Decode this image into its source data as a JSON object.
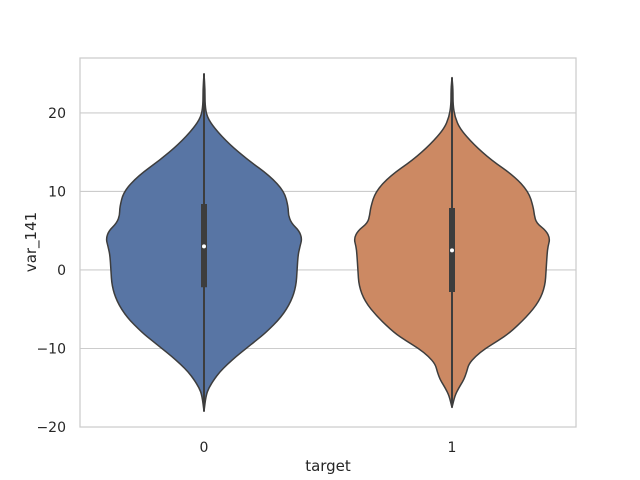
{
  "chart_data": {
    "type": "violin",
    "xlabel": "target",
    "ylabel": "var_141",
    "ylim": [
      -20,
      27
    ],
    "yticks": [
      20,
      10,
      0,
      -10,
      -20
    ],
    "ytick_labels": [
      "20",
      "10",
      "0",
      "−10",
      "−20"
    ],
    "categories": [
      "0",
      "1"
    ],
    "grid": "horizontal",
    "violins": [
      {
        "category": "0",
        "color": "#5875a4",
        "min": -18.0,
        "max": 25.0,
        "median": 3.0,
        "q1": -2.2,
        "q3": 8.4,
        "whisker_low": -15.0,
        "whisker_high": 19.0,
        "density_profile": [
          [
            -18.0,
            0.0
          ],
          [
            -16.0,
            0.02
          ],
          [
            -15.0,
            0.05
          ],
          [
            -14.0,
            0.1
          ],
          [
            -13.0,
            0.16
          ],
          [
            -12.0,
            0.24
          ],
          [
            -11.0,
            0.33
          ],
          [
            -10.0,
            0.43
          ],
          [
            -9.0,
            0.53
          ],
          [
            -8.0,
            0.63
          ],
          [
            -6.0,
            0.79
          ],
          [
            -4.0,
            0.89
          ],
          [
            -2.0,
            0.94
          ],
          [
            0.0,
            0.95
          ],
          [
            2.0,
            0.96
          ],
          [
            3.0,
            0.98
          ],
          [
            4.0,
            1.0
          ],
          [
            5.0,
            0.97
          ],
          [
            6.0,
            0.89
          ],
          [
            7.0,
            0.86
          ],
          [
            8.0,
            0.86
          ],
          [
            10.0,
            0.82
          ],
          [
            12.0,
            0.67
          ],
          [
            14.0,
            0.45
          ],
          [
            16.0,
            0.26
          ],
          [
            18.0,
            0.11
          ],
          [
            19.5,
            0.03
          ],
          [
            21.0,
            0.01
          ],
          [
            23.0,
            0.01
          ],
          [
            25.0,
            0.0
          ]
        ]
      },
      {
        "category": "1",
        "color": "#cc8963",
        "min": -17.5,
        "max": 24.5,
        "median": 2.5,
        "q1": -2.8,
        "q3": 7.9,
        "whisker_low": -15.5,
        "whisker_high": 19.0,
        "density_profile": [
          [
            -17.5,
            0.0
          ],
          [
            -16.0,
            0.03
          ],
          [
            -15.0,
            0.07
          ],
          [
            -14.0,
            0.12
          ],
          [
            -13.0,
            0.15
          ],
          [
            -12.0,
            0.17
          ],
          [
            -11.0,
            0.24
          ],
          [
            -10.0,
            0.34
          ],
          [
            -9.0,
            0.47
          ],
          [
            -8.0,
            0.59
          ],
          [
            -6.0,
            0.76
          ],
          [
            -4.0,
            0.89
          ],
          [
            -2.0,
            0.95
          ],
          [
            0.0,
            0.96
          ],
          [
            2.0,
            0.97
          ],
          [
            3.0,
            0.98
          ],
          [
            4.0,
            1.0
          ],
          [
            5.0,
            0.96
          ],
          [
            6.0,
            0.86
          ],
          [
            7.0,
            0.84
          ],
          [
            8.0,
            0.83
          ],
          [
            10.0,
            0.78
          ],
          [
            12.0,
            0.63
          ],
          [
            14.0,
            0.4
          ],
          [
            16.0,
            0.22
          ],
          [
            18.0,
            0.08
          ],
          [
            19.5,
            0.03
          ],
          [
            21.0,
            0.01
          ],
          [
            23.0,
            0.01
          ],
          [
            24.5,
            0.0
          ]
        ]
      }
    ]
  }
}
